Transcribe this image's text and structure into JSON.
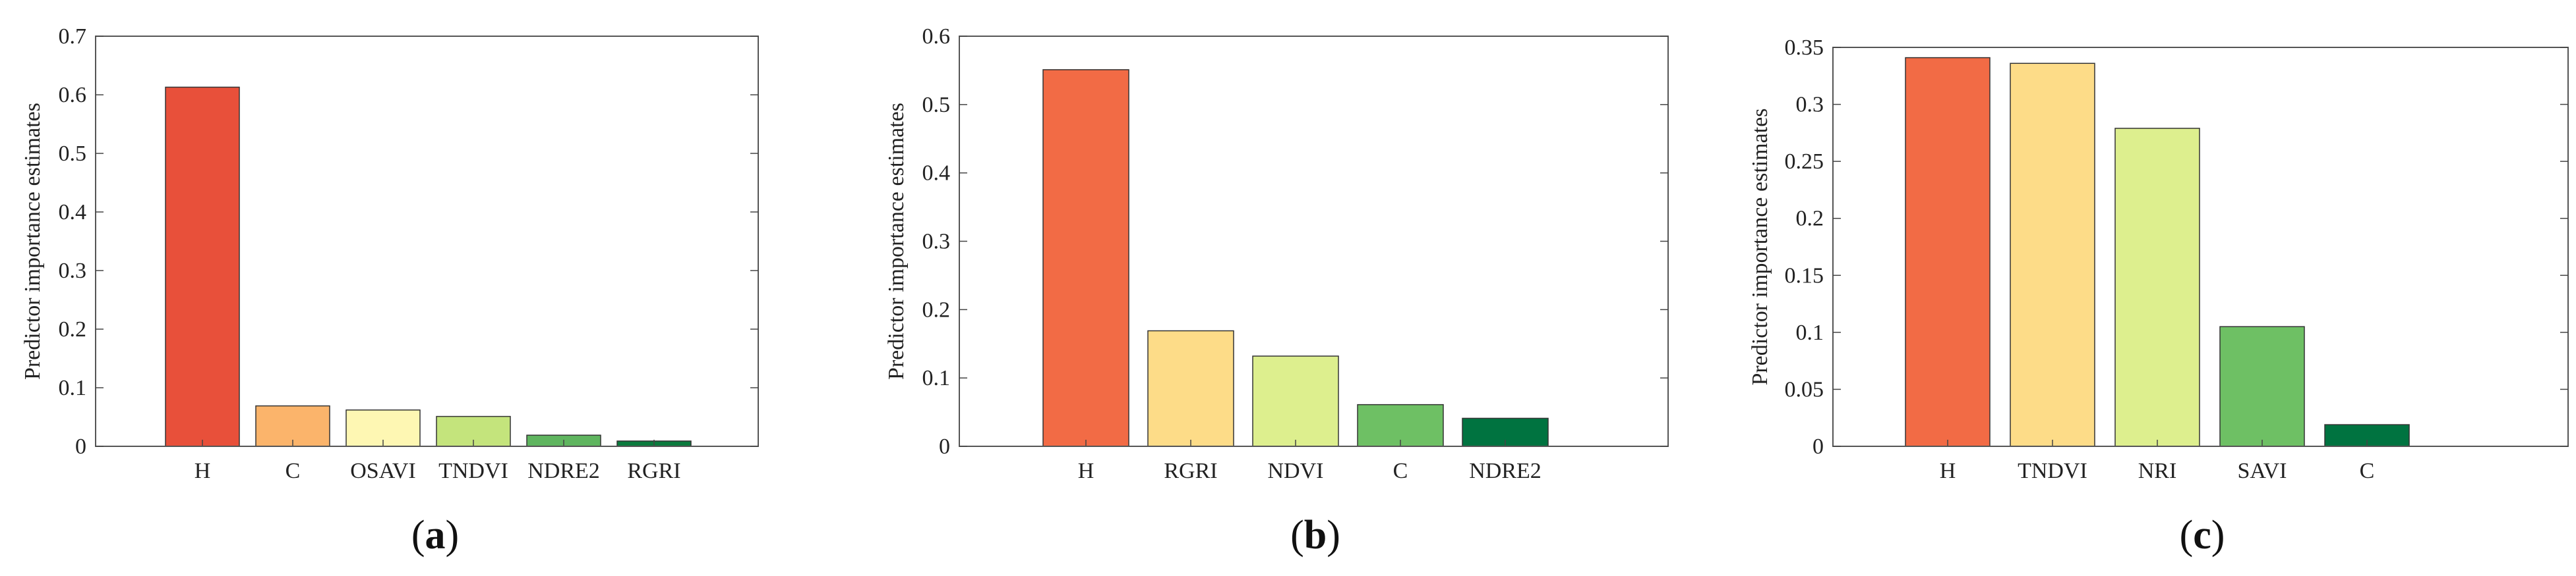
{
  "chart_data": [
    {
      "type": "bar",
      "ylabel": "Predictor importance estimates",
      "categories": [
        "H",
        "C",
        "OSAVI",
        "TNDVI",
        "NDRE2",
        "RGRI"
      ],
      "values": [
        0.613,
        0.069,
        0.062,
        0.051,
        0.019,
        0.009
      ],
      "colors": [
        "#e8503a",
        "#fbb46b",
        "#fef7b3",
        "#c4e47c",
        "#5fb55f",
        "#0b7a3d"
      ],
      "ylim": [
        0,
        0.7
      ],
      "yticks": [
        "0",
        "0.1",
        "0.2",
        "0.3",
        "0.4",
        "0.5",
        "0.6",
        "0.7"
      ],
      "ytick_values": [
        0,
        0.1,
        0.2,
        0.3,
        0.4,
        0.5,
        0.6,
        0.7
      ],
      "grid": false
    },
    {
      "type": "bar",
      "ylabel": "Predictor importance estimates",
      "categories": [
        "H",
        "RGRI",
        "NDVI",
        "C",
        "NDRE2"
      ],
      "values": [
        0.551,
        0.169,
        0.132,
        0.061,
        0.041
      ],
      "colors": [
        "#f26b45",
        "#fddc88",
        "#ddef8e",
        "#6ec064",
        "#007340"
      ],
      "ylim": [
        0,
        0.6
      ],
      "yticks": [
        "0",
        "0.1",
        "0.2",
        "0.3",
        "0.4",
        "0.5",
        "0.6"
      ],
      "ytick_values": [
        0,
        0.1,
        0.2,
        0.3,
        0.4,
        0.5,
        0.6
      ],
      "grid": false
    },
    {
      "type": "bar",
      "ylabel": "Predictor importance estimates",
      "categories": [
        "H",
        "TNDVI",
        "NRI",
        "SAVI",
        "C"
      ],
      "values": [
        0.341,
        0.336,
        0.279,
        0.105,
        0.019
      ],
      "colors": [
        "#f26b45",
        "#fddc88",
        "#ddef8e",
        "#6ec064",
        "#007340"
      ],
      "ylim": [
        0,
        0.35
      ],
      "yticks": [
        "0",
        "0.05",
        "0.1",
        "0.15",
        "0.2",
        "0.25",
        "0.3",
        "0.35"
      ],
      "ytick_values": [
        0,
        0.05,
        0.1,
        0.15,
        0.2,
        0.25,
        0.3,
        0.35
      ],
      "grid": false
    }
  ],
  "panel_labels": [
    {
      "letter": "a"
    },
    {
      "letter": "b"
    },
    {
      "letter": "c"
    }
  ]
}
